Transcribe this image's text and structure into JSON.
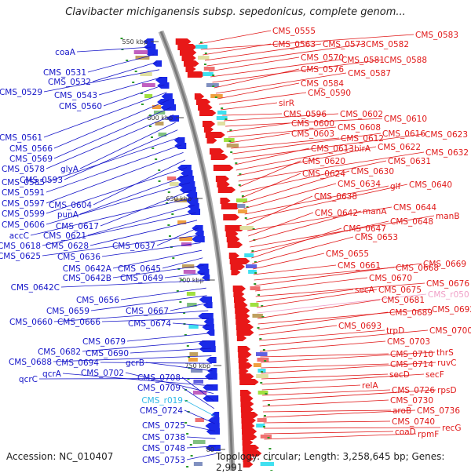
{
  "title": "Clavibacter michiganensis subsp. sepedonicus, complete genom...",
  "accession": "Accession: NC_010407",
  "topology": "Topology: circular; Length: 3,258,645 bp; Genes: 2,991",
  "colors": {
    "reverse_label": "#1515c8",
    "forward_label": "#e01818",
    "rna_reverse": "#30b8e8",
    "rna_forward": "#f0a0c8",
    "backbone": "#8a8a8a",
    "tick": "#2a9a2a",
    "arrow_reverse": "#1a2ae8",
    "arrow_forward": "#e81818"
  },
  "ticks": [
    {
      "label": "550 kbp"
    },
    {
      "label": "600 kbp"
    },
    {
      "label": "650 kbp"
    },
    {
      "label": "700 kbp"
    },
    {
      "label": "750 kbp"
    },
    {
      "label": "80"
    }
  ],
  "left_labels": [
    {
      "text": "coaA"
    },
    {
      "text": "CMS_0531"
    },
    {
      "text": "CMS_0532"
    },
    {
      "text": "CMS_0529"
    },
    {
      "text": "CMS_0543"
    },
    {
      "text": "CMS_0560"
    },
    {
      "text": "CMS_0561"
    },
    {
      "text": "CMS_0566"
    },
    {
      "text": "CMS_0569"
    },
    {
      "text": "CMS_0578"
    },
    {
      "text": "glyA"
    },
    {
      "text": "CMS_0593"
    },
    {
      "text": "CMS_0585"
    },
    {
      "text": "CMS_0591"
    },
    {
      "text": "CMS_0597"
    },
    {
      "text": "CMS_0604"
    },
    {
      "text": "CMS_0599"
    },
    {
      "text": "punA"
    },
    {
      "text": "CMS_0606"
    },
    {
      "text": "CMS_0617"
    },
    {
      "text": "accC"
    },
    {
      "text": "CMS_0621"
    },
    {
      "text": "CMS_0618"
    },
    {
      "text": "CMS_0628"
    },
    {
      "text": "CMS_0637"
    },
    {
      "text": "CMS_0625"
    },
    {
      "text": "CMS_0636"
    },
    {
      "text": "CMS_0642A"
    },
    {
      "text": "CMS_0645"
    },
    {
      "text": "CMS_0642B"
    },
    {
      "text": "CMS_0649"
    },
    {
      "text": "CMS_0642C"
    },
    {
      "text": "CMS_0656"
    },
    {
      "text": "CMS_0659"
    },
    {
      "text": "CMS_0667"
    },
    {
      "text": "CMS_0660"
    },
    {
      "text": "CMS_0666"
    },
    {
      "text": "CMS_0674"
    },
    {
      "text": "CMS_0679"
    },
    {
      "text": "CMS_0682"
    },
    {
      "text": "CMS_0690"
    },
    {
      "text": "CMS_0688"
    },
    {
      "text": "CMS_0694"
    },
    {
      "text": "gcrB"
    },
    {
      "text": "qcrC"
    },
    {
      "text": "qcrA"
    },
    {
      "text": "CMS_0702"
    },
    {
      "text": "CMS_0708"
    },
    {
      "text": "CMS_0709"
    },
    {
      "text": "CMS_r019",
      "rna": true
    },
    {
      "text": "CMS_0724"
    },
    {
      "text": "CMS_0725"
    },
    {
      "text": "CMS_0738"
    },
    {
      "text": "CMS_0748"
    },
    {
      "text": "CMS_0753"
    }
  ],
  "right_labels": [
    {
      "text": "CMS_0555"
    },
    {
      "text": "CMS_0583"
    },
    {
      "text": "CMS_0563"
    },
    {
      "text": "CMS_0573"
    },
    {
      "text": "CMS_0582"
    },
    {
      "text": "CMS_0570"
    },
    {
      "text": "CMS_0581"
    },
    {
      "text": "CMS_0588"
    },
    {
      "text": "CMS_0576"
    },
    {
      "text": "CMS_0587"
    },
    {
      "text": "CMS_0584"
    },
    {
      "text": "CMS_0590"
    },
    {
      "text": "sirR"
    },
    {
      "text": "CMS_0596"
    },
    {
      "text": "CMS_0602"
    },
    {
      "text": "CMS_0610"
    },
    {
      "text": "CMS_0600"
    },
    {
      "text": "CMS_0608"
    },
    {
      "text": "CMS_0603"
    },
    {
      "text": "CMS_0612"
    },
    {
      "text": "CMS_0616"
    },
    {
      "text": "CMS_0623"
    },
    {
      "text": "CMS_0613"
    },
    {
      "text": "birA"
    },
    {
      "text": "CMS_0622"
    },
    {
      "text": "CMS_0632"
    },
    {
      "text": "CMS_0620"
    },
    {
      "text": "CMS_0631"
    },
    {
      "text": "CMS_0624"
    },
    {
      "text": "CMS_0630"
    },
    {
      "text": "CMS_0634"
    },
    {
      "text": "glf"
    },
    {
      "text": "CMS_0640"
    },
    {
      "text": "CMS_0638"
    },
    {
      "text": "CMS_0644"
    },
    {
      "text": "CMS_0642"
    },
    {
      "text": "manA"
    },
    {
      "text": "manB"
    },
    {
      "text": "CMS_0648"
    },
    {
      "text": "CMS_0647"
    },
    {
      "text": "CMS_0653"
    },
    {
      "text": "CMS_0655"
    },
    {
      "text": "CMS_0661"
    },
    {
      "text": "CMS_0668"
    },
    {
      "text": "CMS_0669"
    },
    {
      "text": "CMS_0670"
    },
    {
      "text": "CMS_0676"
    },
    {
      "text": "secA"
    },
    {
      "text": "CMS_0675"
    },
    {
      "text": "CMS_r050",
      "rna": true
    },
    {
      "text": "CMS_0681"
    },
    {
      "text": "CMS_0692"
    },
    {
      "text": "CMS_0689"
    },
    {
      "text": "CMS_0693"
    },
    {
      "text": "trpD"
    },
    {
      "text": "CMS_0700"
    },
    {
      "text": "CMS_0703"
    },
    {
      "text": "CMS_0710"
    },
    {
      "text": "thrS"
    },
    {
      "text": "CMS_0714"
    },
    {
      "text": "ruvC"
    },
    {
      "text": "secD"
    },
    {
      "text": "secF"
    },
    {
      "text": "relA"
    },
    {
      "text": "CMS_0726"
    },
    {
      "text": "rpsD"
    },
    {
      "text": "CMS_0730"
    },
    {
      "text": "aroB"
    },
    {
      "text": "CMS_0736"
    },
    {
      "text": "CMS_0740"
    },
    {
      "text": "recG"
    },
    {
      "text": "coaD"
    },
    {
      "text": "rpmF"
    }
  ]
}
